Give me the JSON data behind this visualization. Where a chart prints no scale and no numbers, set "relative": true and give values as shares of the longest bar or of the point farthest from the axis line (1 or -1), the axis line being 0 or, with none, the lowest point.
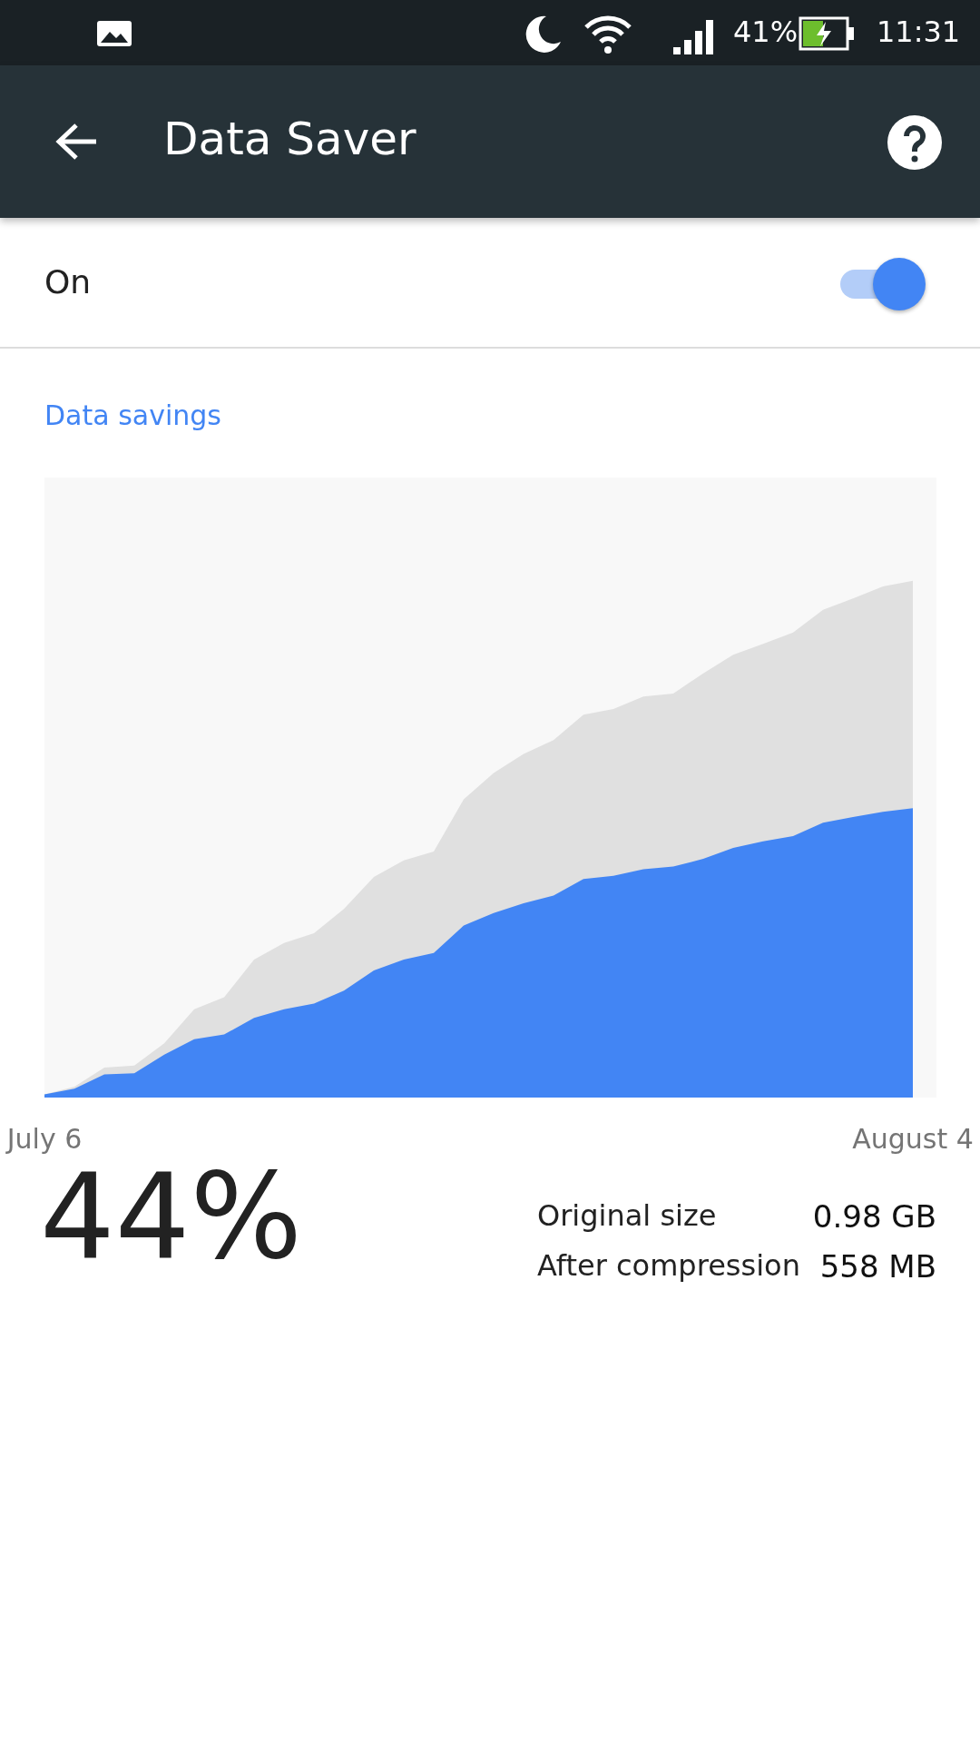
{
  "chart_data": {
    "type": "area",
    "title": "Data Saver",
    "subtitle": "Data savings",
    "relative": true,
    "categories": [
      "July 6",
      null,
      null,
      null,
      null,
      null,
      null,
      null,
      null,
      null,
      null,
      null,
      null,
      null,
      null,
      null,
      null,
      null,
      null,
      null,
      null,
      null,
      null,
      null,
      null,
      null,
      null,
      null,
      null,
      "August 4"
    ],
    "series": [
      {
        "color": "#e0e0e0",
        "values": [
          0.006,
          0.021,
          0.058,
          0.062,
          0.105,
          0.171,
          0.194,
          0.267,
          0.299,
          0.318,
          0.365,
          0.427,
          0.459,
          0.476,
          0.577,
          0.628,
          0.665,
          0.692,
          0.741,
          0.752,
          0.776,
          0.782,
          0.821,
          0.857,
          0.878,
          0.9,
          0.944,
          0.966,
          0.989,
          1
        ]
      },
      {
        "color": "#4285f4",
        "values": [
          0.006,
          0.017,
          0.045,
          0.047,
          0.083,
          0.113,
          0.122,
          0.154,
          0.171,
          0.182,
          0.207,
          0.246,
          0.267,
          0.28,
          0.333,
          0.357,
          0.376,
          0.391,
          0.423,
          0.429,
          0.442,
          0.447,
          0.462,
          0.483,
          0.496,
          0.506,
          0.532,
          0.543,
          0.553,
          0.56
        ]
      }
    ],
    "annotations": [
      "41%",
      "11:31",
      "On",
      "44%",
      "Original size",
      "0.98 GB",
      "After compression",
      "558 MB"
    ]
  }
}
